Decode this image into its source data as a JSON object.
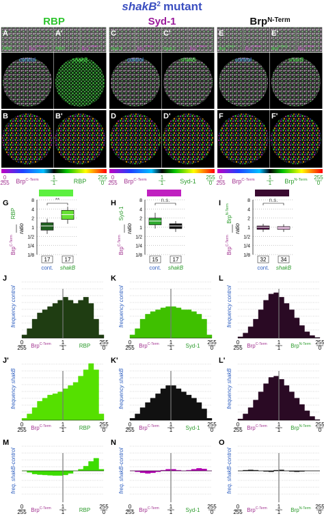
{
  "title": {
    "gene": "shakB",
    "sup": "2",
    "rest": "mutant"
  },
  "scale": {
    "left": [
      0,
      255
    ],
    "center": [
      1,
      1
    ],
    "right": [
      255,
      0
    ]
  },
  "boxplot_axis": {
    "label": "ratio",
    "ylim": [
      0.125,
      8
    ],
    "yticks": [
      8,
      4,
      2,
      1,
      {
        "value": 0.5,
        "label": "1/2"
      },
      {
        "value": 0.25,
        "label": "1/4"
      },
      {
        "value": 0.125,
        "label": "1/8"
      }
    ]
  },
  "hist_labels": {
    "control": "frequency control",
    "mutant": "frequency shakB",
    "diff": "freq. shakB-control"
  },
  "hist_ylim": {
    "freq": [
      0,
      1
    ],
    "diff": [
      -1,
      1
    ]
  },
  "columns": [
    {
      "header": {
        "base": "RBP"
      },
      "header_color": "#2ec42e",
      "marker": {
        "base": "RBP"
      },
      "reference": {
        "base": "Brp",
        "sup": "C-Term"
      },
      "letters": {
        "a": "A",
        "a2": "A'",
        "b": "B",
        "b2": "B'",
        "box": "G",
        "hist_control": "J",
        "hist_mutant": "J'",
        "hist_diff": "M"
      },
      "conditions": [
        "control",
        "shakB"
      ],
      "boxplot": {
        "swatch": "#5cf040",
        "groups": [
          "cont.",
          "shakB"
        ],
        "counts": [
          17,
          17
        ],
        "significance": "**",
        "colors": [
          "#1f5e1f",
          "#66e033"
        ],
        "stats": [
          [
            0.6,
            0.8,
            1.1,
            1.4,
            1.9
          ],
          [
            1.3,
            1.8,
            2.6,
            3.6,
            4.8
          ]
        ]
      },
      "hist": {
        "colors": [
          "#1f3d12",
          "#55e000",
          "#3ddc00"
        ],
        "control": [
          0.05,
          0.15,
          0.3,
          0.4,
          0.45,
          0.5,
          0.55,
          0.6,
          0.65,
          0.6,
          0.55,
          0.6,
          0.65,
          0.55,
          0.3,
          0.05
        ],
        "mutant": [
          0.03,
          0.1,
          0.2,
          0.3,
          0.35,
          0.4,
          0.42,
          0.45,
          0.5,
          0.55,
          0.6,
          0.7,
          0.8,
          0.9,
          0.8,
          0.1
        ],
        "diff": [
          0,
          -0.05,
          -0.1,
          -0.12,
          -0.13,
          -0.14,
          -0.15,
          -0.15,
          -0.13,
          -0.08,
          0,
          0.05,
          0.15,
          0.3,
          0.4,
          0.05
        ]
      }
    },
    {
      "header": {
        "base": "Syd-1"
      },
      "header_color": "#9a1a9a",
      "marker": {
        "base": "Syd-1"
      },
      "reference": {
        "base": "Brp",
        "sup": "C-Term"
      },
      "letters": {
        "a": "C",
        "a2": "C'",
        "b": "D",
        "b2": "D'",
        "box": "H",
        "hist_control": "K",
        "hist_mutant": "K'",
        "hist_diff": "N"
      },
      "conditions": [
        "control",
        "shakB"
      ],
      "boxplot": {
        "swatch": "#c020c0",
        "groups": [
          "cont.",
          "shakB"
        ],
        "counts": [
          15,
          17
        ],
        "significance": "n.s.",
        "colors": [
          "#2ea82e",
          "#111111"
        ],
        "stats": [
          [
            0.9,
            1.2,
            1.6,
            2.0,
            3.0
          ],
          [
            0.7,
            0.9,
            1.1,
            1.3,
            1.6
          ]
        ]
      },
      "hist": {
        "colors": [
          "#3fc000",
          "#111111",
          "#b000b0"
        ],
        "control": [
          0.05,
          0.15,
          0.3,
          0.38,
          0.42,
          0.45,
          0.48,
          0.5,
          0.5,
          0.48,
          0.45,
          0.45,
          0.42,
          0.38,
          0.3,
          0.05
        ],
        "mutant": [
          0.03,
          0.1,
          0.2,
          0.28,
          0.35,
          0.42,
          0.5,
          0.55,
          0.55,
          0.5,
          0.45,
          0.4,
          0.35,
          0.28,
          0.18,
          0.03
        ],
        "diff": [
          0,
          -0.03,
          -0.06,
          -0.08,
          -0.06,
          -0.03,
          0.02,
          0.05,
          0.05,
          0.02,
          0,
          0.02,
          0.05,
          0.08,
          0.06,
          0
        ]
      }
    },
    {
      "header": {
        "base": "Brp",
        "sup": "N-Term"
      },
      "header_color": "#111111",
      "marker": {
        "base": "Brp",
        "sup": "N-Term"
      },
      "reference": {
        "base": "Brp",
        "sup": "C-Term"
      },
      "letters": {
        "a": "E",
        "a2": "E'",
        "b": "F",
        "b2": "F'",
        "box": "I",
        "hist_control": "L",
        "hist_mutant": "L'",
        "hist_diff": "O"
      },
      "conditions": [
        "control",
        "shakB"
      ],
      "boxplot": {
        "swatch": "#3a0a30",
        "groups": [
          "cont.",
          "shakB"
        ],
        "counts": [
          32,
          34
        ],
        "significance": "n.s.",
        "colors": [
          "#4a1040",
          "#c98fc0"
        ],
        "stats": [
          [
            0.7,
            0.85,
            1.0,
            1.1,
            1.3
          ],
          [
            0.7,
            0.85,
            0.95,
            1.05,
            1.25
          ]
        ]
      },
      "hist": {
        "colors": [
          "#2a0a24",
          "#2a0a24",
          "#111111"
        ],
        "control": [
          0.02,
          0.08,
          0.18,
          0.3,
          0.45,
          0.6,
          0.7,
          0.72,
          0.65,
          0.55,
          0.45,
          0.32,
          0.2,
          0.1,
          0.04,
          0.01
        ],
        "mutant": [
          0.02,
          0.1,
          0.2,
          0.32,
          0.45,
          0.58,
          0.68,
          0.7,
          0.65,
          0.55,
          0.45,
          0.35,
          0.25,
          0.15,
          0.06,
          0.01
        ],
        "diff": [
          0,
          0.02,
          0.03,
          0.02,
          0,
          -0.02,
          -0.03,
          0.02,
          0.03,
          0,
          -0.02,
          -0.03,
          -0.02,
          0,
          0,
          0
        ]
      }
    }
  ]
}
